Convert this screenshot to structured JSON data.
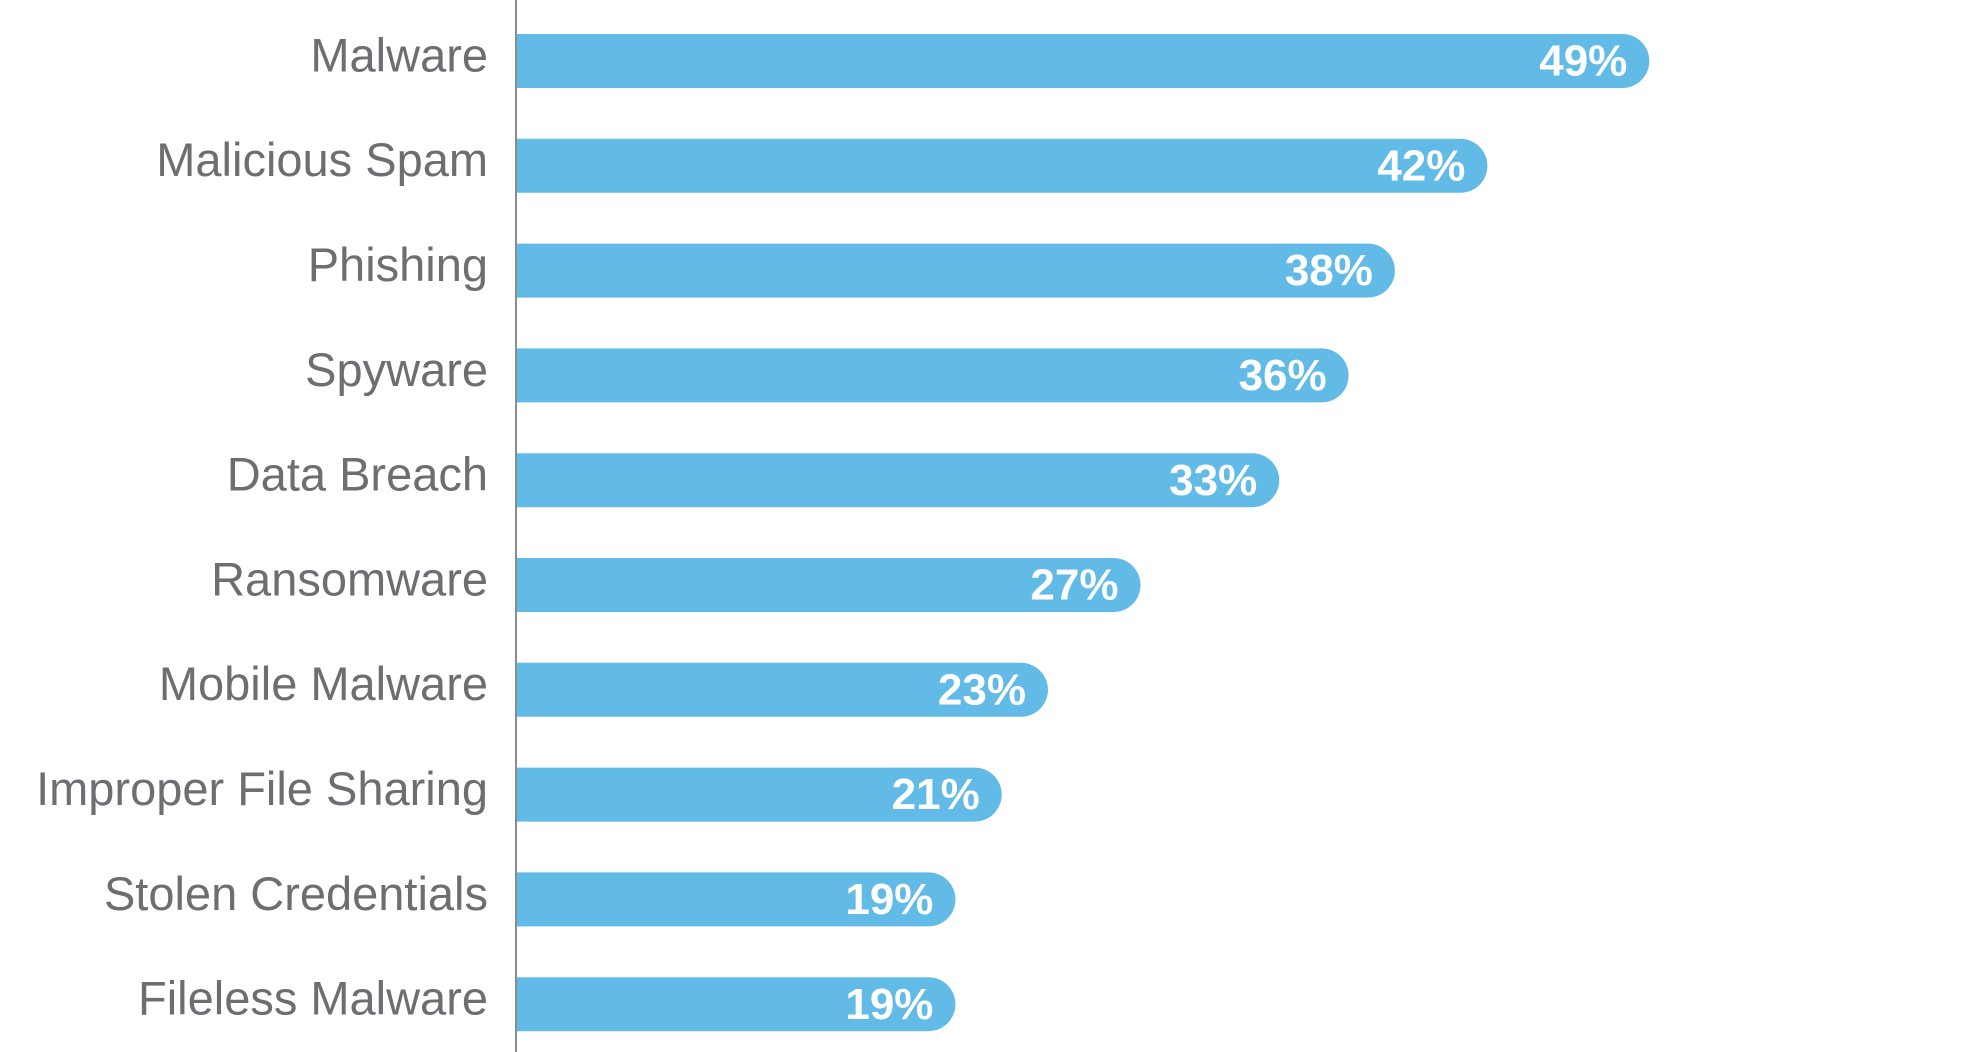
{
  "chart_data": {
    "type": "bar",
    "orientation": "horizontal",
    "categories": [
      "Malware",
      "Malicious Spam",
      "Phishing",
      "Spyware",
      "Data Breach",
      "Ransomware",
      "Mobile Malware",
      "Improper File Sharing",
      "Stolen Credentials",
      "Fileless Malware"
    ],
    "values": [
      49,
      42,
      38,
      36,
      33,
      27,
      23,
      21,
      19,
      19
    ],
    "value_labels": [
      "49%",
      "42%",
      "38%",
      "36%",
      "33%",
      "27%",
      "23%",
      "21%",
      "19%",
      "19%"
    ],
    "title": "",
    "xlabel": "",
    "ylabel": "",
    "xlim": [
      0,
      62
    ],
    "grid": false,
    "legend": "none",
    "bar_color": "#62bbe6",
    "axis_color": "#8a8c8e",
    "label_color": "#6d6e71",
    "value_label_color": "#ffffff"
  }
}
